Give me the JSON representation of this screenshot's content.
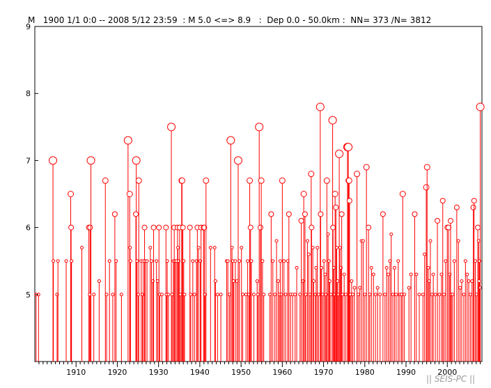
{
  "header": {
    "text": "M   1900 1/1 0:0 -- 2008 5/12 23:59  : M 5.0 <=> 8.9   :  Dep 0.0 - 50.0km :  NN= 373 /N= 3812"
  },
  "watermark": "|| SEIS-PC ||",
  "colors": {
    "marks": "#ff0000",
    "axis": "#000000",
    "watermark": "#9a9a9a"
  },
  "chart_data": {
    "type": "stem",
    "xlim": [
      1900.0,
      2008.4
    ],
    "ylim": [
      4.0,
      9.0
    ],
    "x_ticks": [
      1910,
      1920,
      1930,
      1940,
      1950,
      1960,
      1970,
      1980,
      1990,
      2000
    ],
    "y_ticks": [
      5,
      6,
      7,
      8,
      9
    ],
    "series": [
      {
        "points": [
          [
            1900.3,
            5.0
          ],
          [
            1900.9,
            5.0
          ],
          [
            1904.4,
            7.0
          ],
          [
            1904.5,
            5.5
          ],
          [
            1905.4,
            5.0
          ],
          [
            1905.6,
            5.5
          ],
          [
            1907.6,
            5.5
          ],
          [
            1908.7,
            6.5
          ],
          [
            1908.8,
            6.0
          ],
          [
            1908.9,
            5.5
          ],
          [
            1911.4,
            5.7
          ],
          [
            1913.1,
            6.0
          ],
          [
            1913.4,
            6.0
          ],
          [
            1913.6,
            7.0
          ],
          [
            1913.3,
            5.0
          ],
          [
            1914.3,
            5.0
          ],
          [
            1915.6,
            5.2
          ],
          [
            1917.1,
            6.7
          ],
          [
            1917.4,
            5.0
          ],
          [
            1918.1,
            5.5
          ],
          [
            1918.9,
            5.0
          ],
          [
            1919.4,
            6.2
          ],
          [
            1919.7,
            5.5
          ],
          [
            1921.0,
            5.0
          ],
          [
            1922.6,
            7.3
          ],
          [
            1923.0,
            6.5
          ],
          [
            1923.1,
            5.7
          ],
          [
            1923.2,
            5.5
          ],
          [
            1924.6,
            7.0
          ],
          [
            1924.5,
            6.2
          ],
          [
            1924.8,
            5.5
          ],
          [
            1925.2,
            6.7
          ],
          [
            1925.1,
            5.0
          ],
          [
            1925.8,
            5.5
          ],
          [
            1926.1,
            5.0
          ],
          [
            1926.3,
            5.5
          ],
          [
            1926.6,
            6.0
          ],
          [
            1926.8,
            5.5
          ],
          [
            1927.2,
            5.5
          ],
          [
            1928.0,
            5.7
          ],
          [
            1928.3,
            5.5
          ],
          [
            1928.6,
            5.2
          ],
          [
            1928.8,
            6.0
          ],
          [
            1929.5,
            5.5
          ],
          [
            1929.8,
            5.2
          ],
          [
            1930.1,
            6.0
          ],
          [
            1930.3,
            5.0
          ],
          [
            1930.8,
            5.0
          ],
          [
            1931.8,
            6.0
          ],
          [
            1931.9,
            5.0
          ],
          [
            1932.1,
            5.5
          ],
          [
            1932.4,
            5.0
          ],
          [
            1933.1,
            7.5
          ],
          [
            1933.3,
            5.0
          ],
          [
            1933.6,
            5.5
          ],
          [
            1933.8,
            6.0
          ],
          [
            1934.0,
            5.5
          ],
          [
            1934.3,
            5.5
          ],
          [
            1934.6,
            6.0
          ],
          [
            1934.7,
            5.7
          ],
          [
            1934.9,
            5.5
          ],
          [
            1935.1,
            6.0
          ],
          [
            1935.3,
            5.0
          ],
          [
            1935.6,
            6.7
          ],
          [
            1935.7,
            6.7
          ],
          [
            1935.9,
            6.0
          ],
          [
            1936.1,
            5.5
          ],
          [
            1936.3,
            5.0
          ],
          [
            1937.6,
            6.0
          ],
          [
            1937.8,
            5.0
          ],
          [
            1938.3,
            5.5
          ],
          [
            1938.7,
            5.0
          ],
          [
            1939.2,
            5.5
          ],
          [
            1939.4,
            6.0
          ],
          [
            1939.7,
            5.7
          ],
          [
            1940.1,
            5.5
          ],
          [
            1940.3,
            6.0
          ],
          [
            1940.9,
            6.0
          ],
          [
            1941.1,
            6.0
          ],
          [
            1941.3,
            5.0
          ],
          [
            1941.5,
            6.7
          ],
          [
            1942.6,
            5.7
          ],
          [
            1943.6,
            5.7
          ],
          [
            1943.8,
            5.2
          ],
          [
            1944.3,
            5.0
          ],
          [
            1945.1,
            5.0
          ],
          [
            1946.5,
            5.5
          ],
          [
            1946.8,
            5.5
          ],
          [
            1947.2,
            5.0
          ],
          [
            1947.5,
            7.3
          ],
          [
            1947.8,
            5.7
          ],
          [
            1948.0,
            5.5
          ],
          [
            1948.2,
            5.2
          ],
          [
            1948.6,
            5.5
          ],
          [
            1949.0,
            5.2
          ],
          [
            1949.3,
            7.0
          ],
          [
            1949.6,
            5.5
          ],
          [
            1950.1,
            5.7
          ],
          [
            1950.4,
            5.0
          ],
          [
            1951.2,
            5.0
          ],
          [
            1951.6,
            5.5
          ],
          [
            1951.9,
            5.0
          ],
          [
            1952.1,
            6.7
          ],
          [
            1952.3,
            6.0
          ],
          [
            1952.5,
            5.5
          ],
          [
            1953.1,
            5.0
          ],
          [
            1953.9,
            5.2
          ],
          [
            1954.1,
            5.0
          ],
          [
            1954.4,
            7.5
          ],
          [
            1954.7,
            6.0
          ],
          [
            1954.9,
            6.7
          ],
          [
            1955.2,
            5.5
          ],
          [
            1955.5,
            5.0
          ],
          [
            1957.0,
            5.0
          ],
          [
            1957.3,
            6.2
          ],
          [
            1957.7,
            5.5
          ],
          [
            1958.2,
            5.0
          ],
          [
            1958.6,
            5.8
          ],
          [
            1959.0,
            5.2
          ],
          [
            1959.3,
            5.0
          ],
          [
            1959.5,
            5.5
          ],
          [
            1959.8,
            5.0
          ],
          [
            1960.0,
            6.7
          ],
          [
            1960.4,
            5.5
          ],
          [
            1960.8,
            5.0
          ],
          [
            1961.3,
            5.5
          ],
          [
            1961.6,
            6.2
          ],
          [
            1962.0,
            5.0
          ],
          [
            1962.5,
            5.0
          ],
          [
            1963.1,
            5.0
          ],
          [
            1963.5,
            5.4
          ],
          [
            1964.3,
            5.0
          ],
          [
            1964.6,
            6.1
          ],
          [
            1965.0,
            5.2
          ],
          [
            1965.2,
            6.5
          ],
          [
            1965.5,
            6.2
          ],
          [
            1965.7,
            5.0
          ],
          [
            1966.1,
            5.8
          ],
          [
            1966.4,
            5.6
          ],
          [
            1966.7,
            5.0
          ],
          [
            1967.0,
            6.8
          ],
          [
            1967.1,
            6.0
          ],
          [
            1967.4,
            5.7
          ],
          [
            1967.6,
            5.2
          ],
          [
            1968.0,
            5.0
          ],
          [
            1968.2,
            5.4
          ],
          [
            1968.5,
            5.7
          ],
          [
            1968.8,
            5.0
          ],
          [
            1969.2,
            7.8
          ],
          [
            1969.3,
            6.2
          ],
          [
            1969.5,
            5.4
          ],
          [
            1969.8,
            5.0
          ],
          [
            1970.1,
            5.5
          ],
          [
            1970.4,
            5.3
          ],
          [
            1970.6,
            5.0
          ],
          [
            1970.8,
            6.7
          ],
          [
            1971.1,
            5.9
          ],
          [
            1971.3,
            5.5
          ],
          [
            1971.5,
            5.2
          ],
          [
            1971.8,
            5.0
          ],
          [
            1972.2,
            7.6
          ],
          [
            1972.3,
            6.0
          ],
          [
            1972.5,
            5.4
          ],
          [
            1972.7,
            5.0
          ],
          [
            1972.8,
            6.5
          ],
          [
            1973.0,
            6.3
          ],
          [
            1973.2,
            5.7
          ],
          [
            1973.4,
            5.2
          ],
          [
            1973.6,
            5.0
          ],
          [
            1973.8,
            7.1
          ],
          [
            1974.0,
            5.7
          ],
          [
            1974.2,
            5.4
          ],
          [
            1974.4,
            6.2
          ],
          [
            1974.6,
            5.0
          ],
          [
            1975.0,
            5.3
          ],
          [
            1975.4,
            5.0
          ],
          [
            1975.8,
            7.2
          ],
          [
            1976.0,
            7.2
          ],
          [
            1976.1,
            6.7
          ],
          [
            1976.2,
            6.7
          ],
          [
            1976.3,
            6.4
          ],
          [
            1976.5,
            5.0
          ],
          [
            1976.8,
            5.2
          ],
          [
            1977.1,
            5.0
          ],
          [
            1977.5,
            5.1
          ],
          [
            1978.1,
            6.8
          ],
          [
            1978.4,
            5.0
          ],
          [
            1978.8,
            5.1
          ],
          [
            1979.2,
            5.8
          ],
          [
            1979.6,
            5.8
          ],
          [
            1980.0,
            5.0
          ],
          [
            1980.4,
            6.9
          ],
          [
            1980.9,
            6.0
          ],
          [
            1981.2,
            5.0
          ],
          [
            1981.6,
            5.4
          ],
          [
            1982.1,
            5.3
          ],
          [
            1982.6,
            5.0
          ],
          [
            1983.1,
            5.1
          ],
          [
            1983.7,
            5.0
          ],
          [
            1984.4,
            6.2
          ],
          [
            1984.9,
            5.0
          ],
          [
            1985.3,
            5.4
          ],
          [
            1985.7,
            5.3
          ],
          [
            1986.1,
            5.5
          ],
          [
            1986.4,
            5.9
          ],
          [
            1986.8,
            5.0
          ],
          [
            1987.2,
            5.4
          ],
          [
            1987.6,
            5.0
          ],
          [
            1988.1,
            5.5
          ],
          [
            1988.5,
            5.0
          ],
          [
            1988.9,
            5.0
          ],
          [
            1989.2,
            6.5
          ],
          [
            1989.6,
            5.0
          ],
          [
            1990.7,
            5.1
          ],
          [
            1991.2,
            5.3
          ],
          [
            1992.1,
            6.2
          ],
          [
            1992.5,
            5.3
          ],
          [
            1993.2,
            5.0
          ],
          [
            1994.1,
            5.0
          ],
          [
            1994.5,
            5.6
          ],
          [
            1994.9,
            6.6
          ],
          [
            1995.1,
            6.9
          ],
          [
            1995.4,
            5.4
          ],
          [
            1995.6,
            5.2
          ],
          [
            1995.9,
            5.8
          ],
          [
            1996.3,
            5.0
          ],
          [
            1996.6,
            5.3
          ],
          [
            1997.1,
            5.0
          ],
          [
            1997.6,
            6.1
          ],
          [
            1998.1,
            5.0
          ],
          [
            1998.6,
            5.3
          ],
          [
            1998.9,
            6.4
          ],
          [
            1999.2,
            5.0
          ],
          [
            1999.6,
            5.5
          ],
          [
            2000.0,
            6.0
          ],
          [
            2000.3,
            6.0
          ],
          [
            2000.6,
            5.3
          ],
          [
            2000.8,
            6.1
          ],
          [
            2001.0,
            5.0
          ],
          [
            2001.3,
            5.0
          ],
          [
            2001.7,
            5.5
          ],
          [
            2002.3,
            6.3
          ],
          [
            2002.7,
            5.8
          ],
          [
            2003.1,
            5.1
          ],
          [
            2003.5,
            5.2
          ],
          [
            2004.0,
            5.0
          ],
          [
            2004.4,
            5.5
          ],
          [
            2004.8,
            5.3
          ],
          [
            2005.2,
            5.2
          ],
          [
            2005.6,
            5.0
          ],
          [
            2006.0,
            5.2
          ],
          [
            2006.3,
            6.3
          ],
          [
            2006.5,
            6.4
          ],
          [
            2006.8,
            5.5
          ],
          [
            2007.1,
            5.0
          ],
          [
            2007.4,
            6.0
          ],
          [
            2007.6,
            5.8
          ],
          [
            2007.8,
            5.5
          ],
          [
            2008.0,
            7.8
          ],
          [
            2007.9,
            5.1
          ],
          [
            2007.7,
            5.2
          ]
        ]
      }
    ]
  }
}
